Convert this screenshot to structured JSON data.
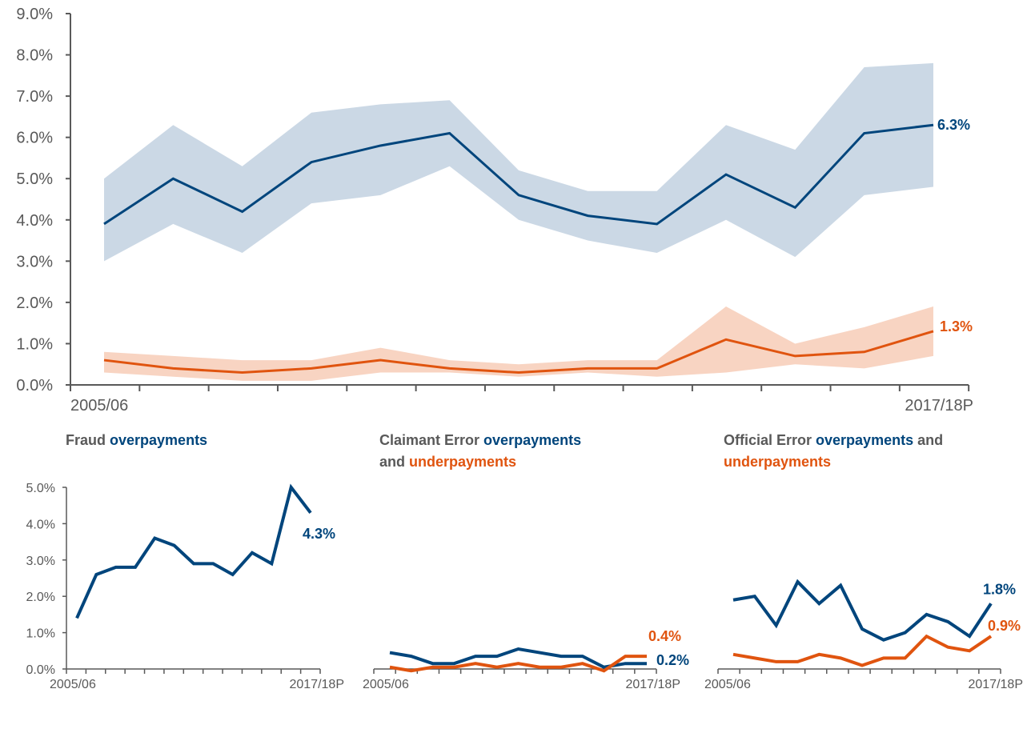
{
  "colors": {
    "overpayments": "#00457c",
    "underpayments": "#e0540f",
    "over_band": "#cbd8e5",
    "under_band": "#f8d4c2",
    "axis": "#595959",
    "title_grey": "#595959"
  },
  "chart_data": [
    {
      "type": "line",
      "x_start_label": "2005/06",
      "x_end_label": "2017/18P",
      "ylim": [
        0,
        9
      ],
      "yticks": [
        "0.0%",
        "1.0%",
        "2.0%",
        "3.0%",
        "4.0%",
        "5.0%",
        "6.0%",
        "7.0%",
        "8.0%",
        "9.0%"
      ],
      "x": [
        0,
        1,
        2,
        3,
        4,
        5,
        6,
        7,
        8,
        9,
        10,
        11,
        12
      ],
      "series": [
        {
          "role": "overpayments",
          "values": [
            3.9,
            5.0,
            4.2,
            5.4,
            5.8,
            6.1,
            4.6,
            4.1,
            3.9,
            5.1,
            4.3,
            6.1,
            6.3
          ],
          "lower": [
            3.0,
            3.9,
            3.2,
            4.4,
            4.6,
            5.3,
            4.0,
            3.5,
            3.2,
            4.0,
            3.1,
            4.6,
            4.8
          ],
          "upper": [
            5.0,
            6.3,
            5.3,
            6.6,
            6.8,
            6.9,
            5.2,
            4.7,
            4.7,
            6.3,
            5.7,
            7.7,
            7.8
          ],
          "end_label": "6.3%"
        },
        {
          "role": "underpayments",
          "values": [
            0.6,
            0.4,
            0.3,
            0.4,
            0.6,
            0.4,
            0.3,
            0.4,
            0.4,
            1.1,
            0.7,
            0.8,
            1.3
          ],
          "lower": [
            0.3,
            0.2,
            0.1,
            0.1,
            0.3,
            0.3,
            0.2,
            0.3,
            0.2,
            0.3,
            0.5,
            0.4,
            0.7
          ],
          "upper": [
            0.8,
            0.7,
            0.6,
            0.6,
            0.9,
            0.6,
            0.5,
            0.6,
            0.6,
            1.9,
            1.0,
            1.4,
            1.9
          ],
          "end_label": "1.3%"
        }
      ]
    },
    {
      "type": "line",
      "title": [
        "Fraud ",
        "overpayments"
      ],
      "x_start_label": "2005/06",
      "x_end_label": "2017/18P",
      "ylim": [
        0,
        5
      ],
      "yticks": [
        "0.0%",
        "1.0%",
        "2.0%",
        "3.0%",
        "4.0%",
        "5.0%"
      ],
      "x": [
        0,
        1,
        2,
        3,
        4,
        5,
        6,
        7,
        8,
        9,
        10,
        11,
        12
      ],
      "series": [
        {
          "role": "overpayments",
          "values": [
            1.4,
            2.6,
            2.8,
            2.8,
            3.6,
            3.4,
            2.9,
            2.9,
            2.6,
            3.2,
            2.9,
            5.0,
            4.3
          ],
          "end_label": "4.3%"
        }
      ]
    },
    {
      "type": "line",
      "title_line1": [
        "Claimant Error ",
        "overpayments"
      ],
      "title_line2": [
        "and ",
        "underpayments"
      ],
      "x_start_label": "2005/06",
      "x_end_label": "2017/18P",
      "ylim": [
        0,
        5
      ],
      "x": [
        0,
        1,
        2,
        3,
        4,
        5,
        6,
        7,
        8,
        9,
        10,
        11,
        12
      ],
      "series": [
        {
          "role": "overpayments",
          "values": [
            0.45,
            0.35,
            0.15,
            0.15,
            0.35,
            0.35,
            0.55,
            0.45,
            0.35,
            0.35,
            0.05,
            0.15,
            0.15
          ],
          "end_label": "0.2%"
        },
        {
          "role": "underpayments",
          "values": [
            0.05,
            -0.05,
            0.05,
            0.05,
            0.15,
            0.05,
            0.15,
            0.05,
            0.05,
            0.15,
            -0.05,
            0.35,
            0.35
          ],
          "end_label": "0.4%"
        }
      ]
    },
    {
      "type": "line",
      "title_line1": [
        "Official Error ",
        "overpayments",
        " and"
      ],
      "title_line2": [
        "underpayments"
      ],
      "x_start_label": "2005/06",
      "x_end_label": "2017/18P",
      "ylim": [
        0,
        5
      ],
      "x": [
        0,
        1,
        2,
        3,
        4,
        5,
        6,
        7,
        8,
        9,
        10,
        11,
        12
      ],
      "series": [
        {
          "role": "overpayments",
          "values": [
            1.9,
            2.0,
            1.2,
            2.4,
            1.8,
            2.3,
            1.1,
            0.8,
            1.0,
            1.5,
            1.3,
            0.9,
            1.8
          ],
          "end_label": "1.8%"
        },
        {
          "role": "underpayments",
          "values": [
            0.4,
            0.3,
            0.2,
            0.2,
            0.4,
            0.3,
            0.1,
            0.3,
            0.3,
            0.9,
            0.6,
            0.5,
            0.9
          ],
          "end_label": "0.9%"
        }
      ]
    }
  ]
}
